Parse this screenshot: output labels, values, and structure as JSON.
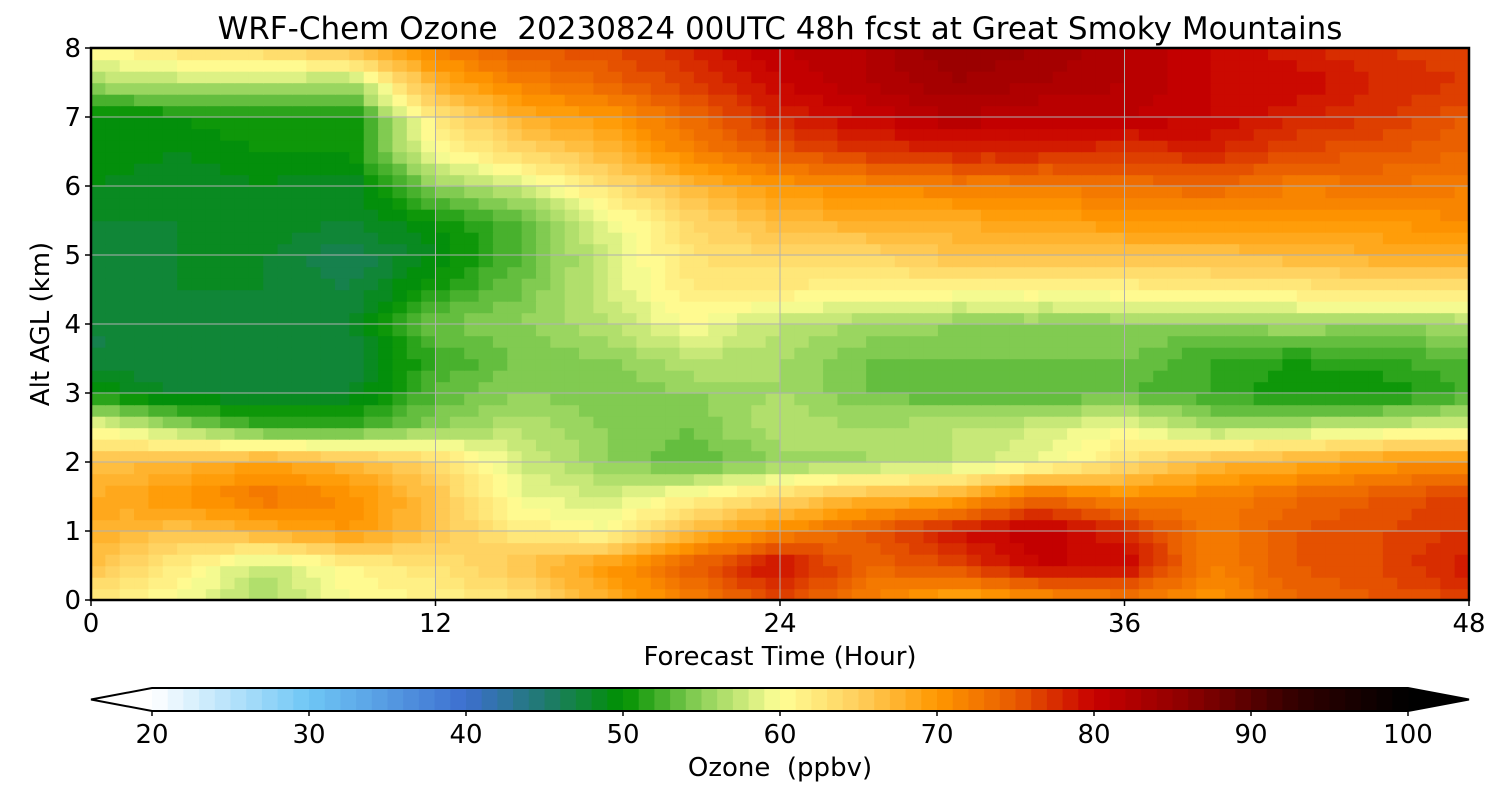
{
  "chart_data": {
    "type": "heatmap",
    "title": "WRF-Chem Ozone  20230824 00UTC 48h fcst at Great Smoky Mountains",
    "xlabel": "Forecast Time (Hour)",
    "ylabel": "Alt AGL (km)",
    "xlim": [
      0,
      48
    ],
    "ylim": [
      0,
      8
    ],
    "xticks": [
      0,
      12,
      24,
      36,
      48
    ],
    "yticks": [
      0,
      1,
      2,
      3,
      4,
      5,
      6,
      7,
      8
    ],
    "grid": true,
    "x": [
      0,
      3,
      6,
      9,
      12,
      15,
      18,
      21,
      24,
      27,
      30,
      33,
      36,
      39,
      42,
      45,
      48
    ],
    "y": [
      0,
      0.5,
      1,
      1.5,
      2,
      2.5,
      3,
      3.5,
      4,
      4.5,
      5,
      5.5,
      6,
      6.5,
      7,
      7.5,
      8
    ],
    "z": [
      [
        62,
        60,
        56,
        60,
        61,
        63,
        68,
        72,
        76,
        72,
        68,
        70,
        72,
        70,
        74,
        75,
        76
      ],
      [
        66,
        62,
        57,
        61,
        63,
        66,
        70,
        75,
        80,
        74,
        76,
        80,
        80,
        72,
        75,
        76,
        79
      ],
      [
        68,
        66,
        68,
        70,
        66,
        62,
        60,
        67,
        71,
        75,
        79,
        81,
        78,
        72,
        75,
        76,
        77
      ],
      [
        68,
        70,
        73,
        71,
        66,
        59,
        58,
        61,
        64,
        67,
        68,
        74,
        71,
        72,
        74,
        75,
        77
      ],
      [
        66,
        67,
        69,
        67,
        64,
        58,
        55,
        53,
        55,
        56,
        57,
        59,
        63,
        67,
        68,
        70,
        71
      ],
      [
        60,
        56,
        52,
        52,
        55,
        57,
        55,
        54,
        57,
        56,
        57,
        58,
        60,
        56,
        57,
        58,
        59
      ],
      [
        50,
        48,
        48,
        48,
        53,
        55,
        54,
        55,
        56,
        54,
        53,
        53,
        53,
        52,
        50,
        50,
        52
      ],
      [
        47,
        47,
        47,
        47,
        52,
        54,
        55,
        57,
        56,
        54,
        54,
        54,
        54,
        52,
        51,
        52,
        53
      ],
      [
        47,
        47,
        48,
        48,
        54,
        55,
        57,
        60,
        57,
        56,
        55,
        55,
        55,
        55,
        56,
        55,
        56
      ],
      [
        47,
        48,
        48,
        47,
        51,
        54,
        58,
        62,
        62,
        61,
        61,
        61,
        61,
        62,
        62,
        63,
        63
      ],
      [
        47,
        48,
        48,
        46,
        49,
        53,
        58,
        63,
        64,
        64,
        66,
        66,
        66,
        66,
        67,
        68,
        68
      ],
      [
        48,
        48,
        49,
        48,
        50,
        53,
        59,
        64,
        67,
        68,
        68,
        69,
        70,
        70,
        70,
        70,
        71
      ],
      [
        49,
        48,
        49,
        48,
        55,
        58,
        63,
        67,
        70,
        71,
        72,
        72,
        73,
        74,
        72,
        73,
        72
      ],
      [
        50,
        49,
        50,
        50,
        60,
        64,
        67,
        72,
        75,
        77,
        78,
        78,
        77,
        78,
        76,
        75,
        74
      ],
      [
        49,
        50,
        51,
        50,
        62,
        68,
        70,
        74,
        78,
        80,
        82,
        81,
        81,
        80,
        78,
        77,
        75
      ],
      [
        56,
        57,
        57,
        56,
        68,
        72,
        74,
        77,
        80,
        82,
        84,
        83,
        82,
        80,
        80,
        78,
        77
      ],
      [
        61,
        63,
        64,
        67,
        72,
        75,
        76,
        78,
        81,
        82,
        85,
        84,
        82,
        80,
        78,
        77,
        76
      ]
    ],
    "colorbar": {
      "label": "Ozone  (ppbv)",
      "min": 20,
      "max": 100,
      "ticks": [
        20,
        30,
        40,
        50,
        60,
        70,
        80,
        90,
        100
      ],
      "extend": "both",
      "colors": [
        [
          20,
          "#ffffff"
        ],
        [
          30,
          "#6ec6f5"
        ],
        [
          40,
          "#3d6fcf"
        ],
        [
          45,
          "#1f7a6e"
        ],
        [
          50,
          "#009100"
        ],
        [
          55,
          "#8fd15a"
        ],
        [
          60,
          "#ffff96"
        ],
        [
          65,
          "#ffce5c"
        ],
        [
          70,
          "#ff9800"
        ],
        [
          75,
          "#e85a00"
        ],
        [
          80,
          "#c80000"
        ],
        [
          86,
          "#8c0000"
        ],
        [
          93,
          "#300000"
        ],
        [
          100,
          "#000000"
        ]
      ]
    }
  }
}
